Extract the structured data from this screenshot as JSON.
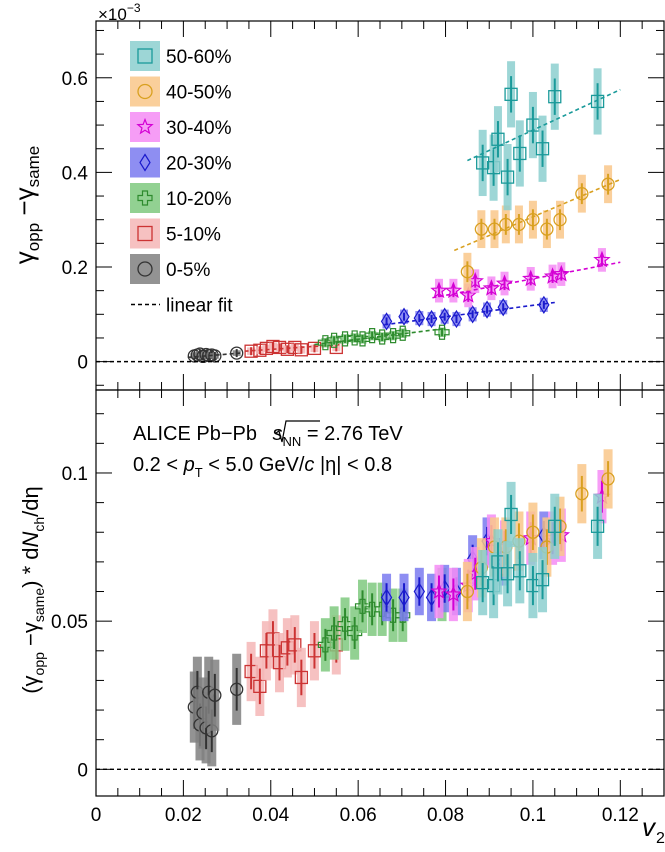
{
  "figure": {
    "x_axis_title": "v",
    "x_axis_sub": "2",
    "x_ticks": [
      "0",
      "0.02",
      "0.04",
      "0.06",
      "0.08",
      "0.1",
      "0.12"
    ]
  },
  "chart_data": [
    {
      "type": "scatter",
      "panel": "top",
      "ylabel": "γopp − γsame",
      "y_multiplier": "×10^-3",
      "xlim": [
        0,
        0.13
      ],
      "ylim": [
        -0.06,
        0.72
      ],
      "y_ticks": [
        "0",
        "0.2",
        "0.4",
        "0.6"
      ],
      "reference_line": {
        "y": 0,
        "style": "dashed"
      },
      "legend": {
        "placement": "top-left",
        "entries": [
          "50-60%",
          "40-50%",
          "30-40%",
          "20-30%",
          "10-20%",
          "5-10%",
          "0-5%",
          "linear fit"
        ]
      },
      "series": [
        {
          "name": "0-5%",
          "marker": "circle",
          "color": "#333333",
          "box_color": "#808080",
          "x": [
            0.0225,
            0.0232,
            0.0238,
            0.0245,
            0.0252,
            0.0258,
            0.0265,
            0.0272,
            0.0322
          ],
          "y": [
            0.012,
            0.014,
            0.016,
            0.011,
            0.015,
            0.013,
            0.014,
            0.012,
            0.018
          ],
          "yerr": [
            0.006,
            0.006,
            0.006,
            0.006,
            0.006,
            0.006,
            0.006,
            0.006,
            0.006
          ],
          "fit": [
            [
              0.021,
              0.009
            ],
            [
              0.033,
              0.018
            ]
          ]
        },
        {
          "name": "5-10%",
          "marker": "square",
          "color": "#cc3333",
          "box_color": "#f4b6b6",
          "x": [
            0.0355,
            0.0375,
            0.039,
            0.0405,
            0.042,
            0.0438,
            0.0455,
            0.047,
            0.05,
            0.055
          ],
          "y": [
            0.022,
            0.024,
            0.028,
            0.032,
            0.03,
            0.026,
            0.03,
            0.025,
            0.028,
            0.03
          ],
          "yerr": [
            0.008,
            0.008,
            0.008,
            0.008,
            0.008,
            0.008,
            0.008,
            0.008,
            0.008,
            0.008
          ],
          "fit": [
            [
              0.034,
              0.022
            ],
            [
              0.056,
              0.036
            ]
          ]
        },
        {
          "name": "10-20%",
          "marker": "cross",
          "color": "#2e8b2e",
          "box_color": "#7fc97f",
          "x": [
            0.0525,
            0.0545,
            0.057,
            0.0592,
            0.061,
            0.0632,
            0.0655,
            0.068,
            0.0702,
            0.0792
          ],
          "y": [
            0.04,
            0.045,
            0.048,
            0.05,
            0.048,
            0.055,
            0.052,
            0.055,
            0.06,
            0.062
          ],
          "yerr": [
            0.01,
            0.01,
            0.01,
            0.01,
            0.01,
            0.01,
            0.01,
            0.01,
            0.01,
            0.01
          ],
          "fit": [
            [
              0.05,
              0.036
            ],
            [
              0.08,
              0.07
            ]
          ]
        },
        {
          "name": "20-30%",
          "marker": "diamond",
          "color": "#1a1acc",
          "box_color": "#7a7af0",
          "x": [
            0.0665,
            0.0705,
            0.074,
            0.0768,
            0.0798,
            0.0825,
            0.0862,
            0.0895,
            0.0932,
            0.1025
          ],
          "y": [
            0.085,
            0.095,
            0.092,
            0.09,
            0.095,
            0.09,
            0.1,
            0.11,
            0.115,
            0.12
          ],
          "yerr": [
            0.015,
            0.015,
            0.015,
            0.015,
            0.015,
            0.015,
            0.015,
            0.015,
            0.015,
            0.015
          ],
          "fit": [
            [
              0.066,
              0.078
            ],
            [
              0.105,
              0.125
            ]
          ]
        },
        {
          "name": "30-40%",
          "marker": "star",
          "color": "#d400d4",
          "box_color": "#f58cf5",
          "x": [
            0.0785,
            0.0818,
            0.0852,
            0.0868,
            0.0905,
            0.0935,
            0.0995,
            0.1045,
            0.1065,
            0.1158
          ],
          "y": [
            0.15,
            0.15,
            0.14,
            0.17,
            0.155,
            0.165,
            0.175,
            0.18,
            0.185,
            0.215
          ],
          "yerr": [
            0.025,
            0.025,
            0.025,
            0.025,
            0.025,
            0.025,
            0.025,
            0.025,
            0.025,
            0.025
          ],
          "fit": [
            [
              0.077,
              0.135
            ],
            [
              0.12,
              0.21
            ]
          ]
        },
        {
          "name": "40-50%",
          "marker": "circle",
          "color": "#d9a020",
          "box_color": "#f9c78a",
          "x": [
            0.085,
            0.0882,
            0.0912,
            0.0938,
            0.0968,
            0.1,
            0.1032,
            0.1062,
            0.1112,
            0.1172
          ],
          "y": [
            0.19,
            0.28,
            0.28,
            0.29,
            0.29,
            0.3,
            0.28,
            0.3,
            0.355,
            0.375
          ],
          "yerr": [
            0.04,
            0.04,
            0.04,
            0.04,
            0.04,
            0.04,
            0.04,
            0.04,
            0.04,
            0.04
          ],
          "fit": [
            [
              0.082,
              0.235
            ],
            [
              0.12,
              0.385
            ]
          ]
        },
        {
          "name": "50-60%",
          "marker": "square",
          "color": "#1a9a9a",
          "box_color": "#8ccfcf",
          "x": [
            0.0885,
            0.091,
            0.092,
            0.0942,
            0.095,
            0.097,
            0.1,
            0.1022,
            0.105,
            0.1148
          ],
          "y": [
            0.42,
            0.41,
            0.47,
            0.39,
            0.565,
            0.44,
            0.5,
            0.45,
            0.56,
            0.55
          ],
          "yerr": [
            0.07,
            0.07,
            0.07,
            0.07,
            0.07,
            0.07,
            0.07,
            0.07,
            0.07,
            0.07
          ],
          "fit": [
            [
              0.085,
              0.425
            ],
            [
              0.12,
              0.575
            ]
          ]
        }
      ]
    },
    {
      "type": "scatter",
      "panel": "bottom",
      "ylabel": "(γopp − γsame) * dNch/dη",
      "xlim": [
        0,
        0.13
      ],
      "ylim": [
        -0.009,
        0.128
      ],
      "y_ticks": [
        "0",
        "0.05",
        "0.1"
      ],
      "reference_line": {
        "y": 0,
        "style": "dashed"
      },
      "annotations": [
        "ALICE Pb−Pb √sNN = 2.76 TeV",
        "0.2 < pT < 5.0 GeV/c   |η| < 0.8"
      ],
      "series": [
        {
          "name": "0-5%",
          "marker": "circle",
          "color": "#333333",
          "box_color": "#808080",
          "x": [
            0.0225,
            0.0232,
            0.0238,
            0.0245,
            0.0252,
            0.0258,
            0.0265,
            0.0272,
            0.0322
          ],
          "y": [
            0.021,
            0.026,
            0.015,
            0.019,
            0.014,
            0.026,
            0.013,
            0.025,
            0.027
          ],
          "yerr": [
            0.012,
            0.012,
            0.012,
            0.012,
            0.012,
            0.012,
            0.012,
            0.012,
            0.012
          ]
        },
        {
          "name": "5-10%",
          "marker": "square",
          "color": "#cc3333",
          "box_color": "#f4b6b6",
          "x": [
            0.0355,
            0.0375,
            0.039,
            0.0405,
            0.042,
            0.0438,
            0.0455,
            0.047,
            0.05,
            0.055
          ],
          "y": [
            0.033,
            0.028,
            0.04,
            0.044,
            0.036,
            0.041,
            0.042,
            0.031,
            0.04,
            0.042
          ],
          "yerr": [
            0.01,
            0.01,
            0.01,
            0.01,
            0.01,
            0.01,
            0.01,
            0.01,
            0.01,
            0.01
          ]
        },
        {
          "name": "10-20%",
          "marker": "cross",
          "color": "#2e8b2e",
          "box_color": "#7fc97f",
          "x": [
            0.0525,
            0.0545,
            0.057,
            0.0592,
            0.061,
            0.0632,
            0.0655,
            0.068,
            0.0702,
            0.0792
          ],
          "y": [
            0.042,
            0.046,
            0.049,
            0.046,
            0.055,
            0.054,
            0.054,
            0.052,
            0.052,
            0.059
          ],
          "yerr": [
            0.009,
            0.009,
            0.009,
            0.009,
            0.009,
            0.009,
            0.009,
            0.009,
            0.009,
            0.009
          ]
        },
        {
          "name": "20-30%",
          "marker": "diamond",
          "color": "#1a1acc",
          "box_color": "#7a7af0",
          "x": [
            0.0665,
            0.0705,
            0.074,
            0.0768,
            0.0798,
            0.0825,
            0.0862,
            0.0895,
            0.0932,
            0.1025
          ],
          "y": [
            0.058,
            0.058,
            0.06,
            0.058,
            0.061,
            0.06,
            0.071,
            0.077,
            0.07,
            0.079
          ],
          "yerr": [
            0.008,
            0.008,
            0.008,
            0.008,
            0.008,
            0.008,
            0.008,
            0.008,
            0.008,
            0.008
          ]
        },
        {
          "name": "30-40%",
          "marker": "star",
          "color": "#d400d4",
          "box_color": "#f58cf5",
          "x": [
            0.0785,
            0.0818,
            0.0852,
            0.0868,
            0.0905,
            0.0935,
            0.0995,
            0.1045,
            0.1065,
            0.1158
          ],
          "y": [
            0.06,
            0.059,
            0.062,
            0.066,
            0.077,
            0.075,
            0.078,
            0.078,
            0.079,
            0.092
          ],
          "yerr": [
            0.009,
            0.009,
            0.009,
            0.009,
            0.009,
            0.009,
            0.009,
            0.009,
            0.009,
            0.009
          ]
        },
        {
          "name": "40-50%",
          "marker": "circle",
          "color": "#d9a020",
          "box_color": "#f9c78a",
          "x": [
            0.085,
            0.0882,
            0.0912,
            0.0938,
            0.0968,
            0.1,
            0.1032,
            0.1062,
            0.1112,
            0.1172
          ],
          "y": [
            0.06,
            0.068,
            0.075,
            0.075,
            0.077,
            0.08,
            0.075,
            0.082,
            0.093,
            0.098
          ],
          "yerr": [
            0.01,
            0.01,
            0.01,
            0.01,
            0.01,
            0.01,
            0.01,
            0.01,
            0.01,
            0.01
          ]
        },
        {
          "name": "50-60%",
          "marker": "square",
          "color": "#1a9a9a",
          "box_color": "#8ccfcf",
          "x": [
            0.0885,
            0.091,
            0.092,
            0.0942,
            0.095,
            0.097,
            0.1,
            0.1022,
            0.105,
            0.1148
          ],
          "y": [
            0.063,
            0.062,
            0.07,
            0.066,
            0.086,
            0.067,
            0.062,
            0.064,
            0.082,
            0.082
          ],
          "yerr": [
            0.011,
            0.011,
            0.011,
            0.011,
            0.011,
            0.011,
            0.011,
            0.011,
            0.011,
            0.011
          ]
        }
      ]
    }
  ]
}
